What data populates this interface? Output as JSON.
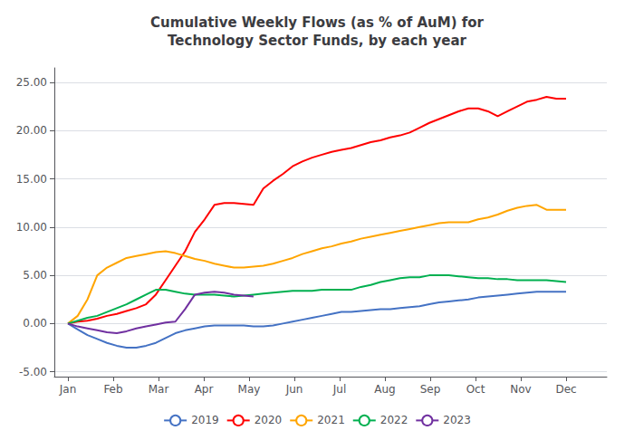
{
  "chart_data": {
    "type": "line",
    "title": "Cumulative Weekly Flows (as % of AuM) for\nTechnology Sector Funds, by each year",
    "x": [
      0,
      0.215686,
      0.431373,
      0.647059,
      0.862745,
      1.078431,
      1.294118,
      1.5098,
      1.72549,
      1.941176,
      2.156863,
      2.372549,
      2.588235,
      2.803922,
      3.019608,
      3.235294,
      3.45098,
      3.666667,
      3.882353,
      4.098039,
      4.313725,
      4.529412,
      4.745098,
      4.960784,
      5.176471,
      5.392157,
      5.607843,
      5.823529,
      6.039216,
      6.254902,
      6.470588,
      6.686275,
      6.901961,
      7.117647,
      7.333333,
      7.54902,
      7.764706,
      7.980392,
      8.196078,
      8.411765,
      8.627451,
      8.843137,
      9.058824,
      9.27451,
      9.490196,
      9.705882,
      9.921569,
      10.137255,
      10.352941,
      10.568627,
      10.784314,
      11
    ],
    "xlim": [
      -0.3,
      11.9
    ],
    "xticks": [
      {
        "value": 0,
        "label": "Jan"
      },
      {
        "value": 1,
        "label": "Feb"
      },
      {
        "value": 2,
        "label": "Mar"
      },
      {
        "value": 3,
        "label": "Apr"
      },
      {
        "value": 4,
        "label": "May"
      },
      {
        "value": 5,
        "label": "Jun"
      },
      {
        "value": 6,
        "label": "Jul"
      },
      {
        "value": 7,
        "label": "Aug"
      },
      {
        "value": 8,
        "label": "Sep"
      },
      {
        "value": 9,
        "label": "Oct"
      },
      {
        "value": 10,
        "label": "Nov"
      },
      {
        "value": 11,
        "label": "Dec"
      }
    ],
    "ylim": [
      -5.5,
      26.5
    ],
    "yticks": [
      {
        "value": -5.0,
        "label": "-5.00"
      },
      {
        "value": 0.0,
        "label": "0.00"
      },
      {
        "value": 5.0,
        "label": "5.00"
      },
      {
        "value": 10.0,
        "label": "10.00"
      },
      {
        "value": 15.0,
        "label": "15.00"
      },
      {
        "value": 20.0,
        "label": "20.00"
      },
      {
        "value": 25.0,
        "label": "25.00"
      }
    ],
    "grid": true,
    "legend": "bottom",
    "series": [
      {
        "name": "2019",
        "color": "#4472c4",
        "values": [
          0.0,
          -0.6,
          -1.2,
          -1.6,
          -2.0,
          -2.3,
          -2.5,
          -2.5,
          -2.3,
          -2.0,
          -1.5,
          -1.0,
          -0.7,
          -0.5,
          -0.3,
          -0.2,
          -0.2,
          -0.2,
          -0.2,
          -0.3,
          -0.3,
          -0.2,
          0.0,
          0.2,
          0.4,
          0.6,
          0.8,
          1.0,
          1.2,
          1.2,
          1.3,
          1.4,
          1.5,
          1.5,
          1.6,
          1.7,
          1.8,
          2.0,
          2.2,
          2.3,
          2.4,
          2.5,
          2.7,
          2.8,
          2.9,
          3.0,
          3.1,
          3.2,
          3.3,
          3.3,
          3.3,
          3.3
        ]
      },
      {
        "name": "2020",
        "color": "#ff0000",
        "values": [
          0.0,
          0.2,
          0.3,
          0.5,
          0.8,
          1.0,
          1.3,
          1.6,
          2.0,
          3.0,
          4.5,
          6.0,
          7.5,
          9.5,
          10.8,
          12.3,
          12.5,
          12.5,
          12.4,
          12.3,
          14.0,
          14.8,
          15.5,
          16.3,
          16.8,
          17.2,
          17.5,
          17.8,
          18.0,
          18.2,
          18.5,
          18.8,
          19.0,
          19.3,
          19.5,
          19.8,
          20.3,
          20.8,
          21.2,
          21.6,
          22.0,
          22.3,
          22.3,
          22.0,
          21.5,
          22.0,
          22.5,
          23.0,
          23.2,
          23.5,
          23.3,
          23.3
        ]
      },
      {
        "name": "2021",
        "color": "#ffa500",
        "values": [
          0.0,
          0.8,
          2.5,
          5.0,
          5.8,
          6.3,
          6.8,
          7.0,
          7.2,
          7.4,
          7.5,
          7.3,
          7.0,
          6.7,
          6.5,
          6.2,
          6.0,
          5.8,
          5.8,
          5.9,
          6.0,
          6.2,
          6.5,
          6.8,
          7.2,
          7.5,
          7.8,
          8.0,
          8.3,
          8.5,
          8.8,
          9.0,
          9.2,
          9.4,
          9.6,
          9.8,
          10.0,
          10.2,
          10.4,
          10.5,
          10.5,
          10.5,
          10.8,
          11.0,
          11.3,
          11.7,
          12.0,
          12.2,
          12.3,
          11.8,
          11.8,
          11.8
        ]
      },
      {
        "name": "2022",
        "color": "#00b050",
        "values": [
          0.0,
          0.3,
          0.6,
          0.8,
          1.2,
          1.6,
          2.0,
          2.5,
          3.0,
          3.5,
          3.5,
          3.3,
          3.1,
          3.0,
          3.0,
          3.0,
          2.9,
          2.8,
          2.9,
          3.0,
          3.1,
          3.2,
          3.3,
          3.4,
          3.4,
          3.4,
          3.5,
          3.5,
          3.5,
          3.5,
          3.8,
          4.0,
          4.3,
          4.5,
          4.7,
          4.8,
          4.8,
          5.0,
          5.0,
          5.0,
          4.9,
          4.8,
          4.7,
          4.7,
          4.6,
          4.6,
          4.5,
          4.5,
          4.5,
          4.5,
          4.4,
          4.3
        ]
      },
      {
        "name": "2023",
        "color": "#7030a0",
        "values": [
          0.0,
          -0.3,
          -0.5,
          -0.7,
          -0.9,
          -1.0,
          -0.8,
          -0.5,
          -0.3,
          -0.1,
          0.1,
          0.2,
          1.5,
          3.0,
          3.2,
          3.3,
          3.2,
          3.0,
          2.9,
          2.8,
          null,
          null,
          null,
          null,
          null,
          null,
          null,
          null,
          null,
          null,
          null,
          null,
          null,
          null,
          null,
          null,
          null,
          null,
          null,
          null,
          null,
          null,
          null,
          null,
          null,
          null,
          null,
          null,
          null,
          null,
          null,
          null
        ]
      }
    ]
  }
}
